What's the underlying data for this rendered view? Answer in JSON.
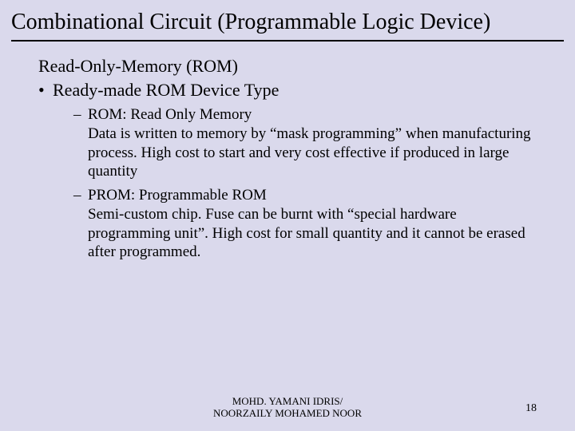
{
  "slide": {
    "title": "Combinational Circuit (Programmable Logic Device)",
    "background_color": "#dad9ec",
    "title_fontsize": 28,
    "body_fontsize": 22,
    "sub_fontsize": 19,
    "rule_color": "#000000"
  },
  "section": {
    "heading": "Read-Only-Memory (ROM)",
    "bullet1": "Ready-made ROM Device Type",
    "items": [
      {
        "term": "ROM: Read Only Memory",
        "desc": "Data is written to memory by “mask programming” when manufacturing process. High cost to start and very cost effective if produced in large quantity"
      },
      {
        "term": "PROM: Programmable ROM",
        "desc": "Semi-custom chip. Fuse can be burnt with “special hardware programming unit”. High cost for small quantity and it cannot be erased after programmed."
      }
    ]
  },
  "footer": {
    "line1": "MOHD. YAMANI IDRIS/",
    "line2": "NOORZAILY MOHAMED NOOR",
    "page": "18"
  }
}
